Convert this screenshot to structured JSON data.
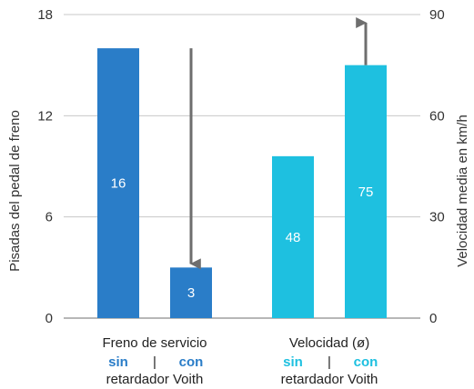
{
  "chart_data": {
    "type": "bar",
    "left_axis": {
      "label": "Pisadas del pedal de freno",
      "ylim": [
        0,
        18
      ],
      "ticks": [
        "0",
        "6",
        "12",
        "18"
      ]
    },
    "right_axis": {
      "label": "Velocidad media en km/h",
      "ylim": [
        0,
        90
      ],
      "ticks": [
        "0",
        "30",
        "60",
        "90"
      ]
    },
    "grid": true,
    "groups": [
      {
        "title": "Freno de servicio",
        "axis": "left",
        "sin_label": "sin",
        "separator": "|",
        "con_label": "con",
        "subtitle": "retardador Voith",
        "color": "#2A7DC8",
        "arrow": "down",
        "bars": [
          {
            "category": "sin",
            "value": 16,
            "label": "16"
          },
          {
            "category": "con",
            "value": 3,
            "label": "3"
          }
        ]
      },
      {
        "title": "Velocidad (ø)",
        "axis": "right",
        "sin_label": "sin",
        "separator": "|",
        "con_label": "con",
        "subtitle": "retardador Voith",
        "color": "#1EC0E0",
        "arrow": "up",
        "bars": [
          {
            "category": "sin",
            "value": 48,
            "label": "48"
          },
          {
            "category": "con",
            "value": 75,
            "label": "75"
          }
        ]
      }
    ]
  },
  "colors": {
    "left_group_label": "#2A7DC8",
    "right_group_label": "#1EC0E0",
    "arrow": "#6E6E6E",
    "grid": "#C8C8C8",
    "axis": "#8C8C8C"
  }
}
